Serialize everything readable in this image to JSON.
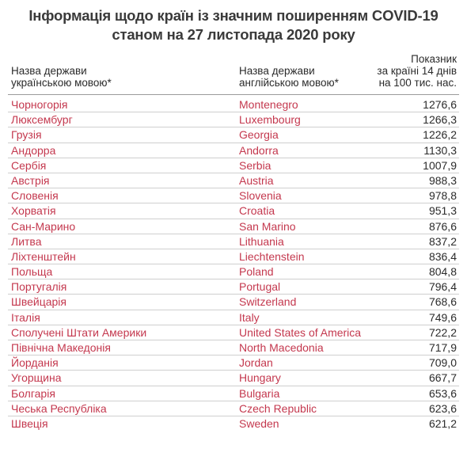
{
  "title": {
    "line1": "Інформація щодо країн із значним поширенням COVID-19",
    "line2": "станом на 27 листопада 2020 року"
  },
  "headers": {
    "ua_line1": "Назва держави",
    "ua_line2": "українською мовою*",
    "en_line1": "Назва держави",
    "en_line2": "англійською мовою*",
    "val_line1": "Показник",
    "val_line2": "за країні 14 днів",
    "val_line3": "на 100 тис. нас."
  },
  "rows": [
    {
      "ua": "Чорногорія",
      "en": "Montenegro",
      "value": "1276,6"
    },
    {
      "ua": "Люксембург",
      "en": "Luxembourg",
      "value": "1266,3"
    },
    {
      "ua": "Грузія",
      "en": "Georgia",
      "value": "1226,2"
    },
    {
      "ua": "Андорра",
      "en": "Andorra",
      "value": "1130,3"
    },
    {
      "ua": "Сербія",
      "en": "Serbia",
      "value": "1007,9"
    },
    {
      "ua": "Австрія",
      "en": "Austria",
      "value": "988,3"
    },
    {
      "ua": "Словенія",
      "en": "Slovenia",
      "value": "978,8"
    },
    {
      "ua": "Хорватія",
      "en": "Croatia",
      "value": "951,3"
    },
    {
      "ua": "Сан-Марино",
      "en": "San Marino",
      "value": "876,6"
    },
    {
      "ua": "Литва",
      "en": "Lithuania",
      "value": "837,2"
    },
    {
      "ua": "Ліхтенштейн",
      "en": "Liechtenstein",
      "value": "836,4"
    },
    {
      "ua": "Польща",
      "en": "Poland",
      "value": "804,8"
    },
    {
      "ua": "Португалія",
      "en": "Portugal",
      "value": "796,4"
    },
    {
      "ua": "Швейцарія",
      "en": "Switzerland",
      "value": "768,6"
    },
    {
      "ua": "Італія",
      "en": "Italy",
      "value": "749,6"
    },
    {
      "ua": "Сполучені Штати Америки",
      "en": "United States of America",
      "value": "722,2"
    },
    {
      "ua": "Північна Македонія",
      "en": "North Macedonia",
      "value": "717,9"
    },
    {
      "ua": "Йорданія",
      "en": "Jordan",
      "value": "709,0"
    },
    {
      "ua": "Угорщина",
      "en": "Hungary",
      "value": "667,7"
    },
    {
      "ua": "Болгарія",
      "en": "Bulgaria",
      "value": "653,6"
    },
    {
      "ua": "Чеська Республіка",
      "en": "Czech Republic",
      "value": "623,6"
    },
    {
      "ua": "Швеція",
      "en": "Sweden",
      "value": "621,2"
    }
  ],
  "colors": {
    "country_text": "#c4384e",
    "value_text": "#2b2b2b"
  }
}
